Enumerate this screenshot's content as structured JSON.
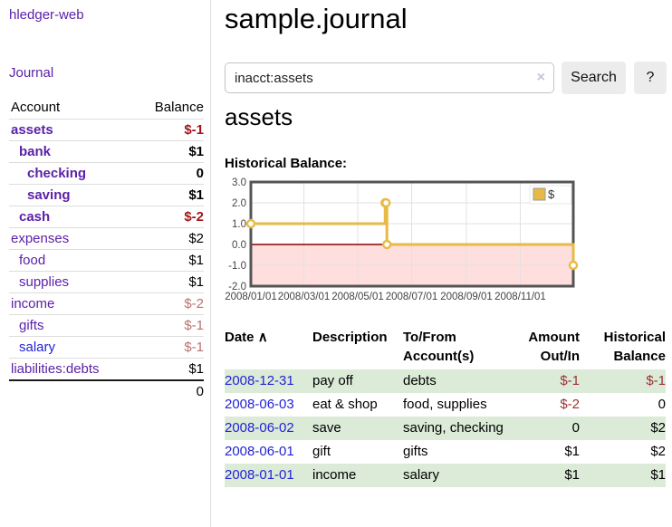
{
  "app": {
    "title": "hledger-web"
  },
  "colors": {
    "link_purple": "#5b21a8",
    "link_blue": "#2323d6",
    "negative_strong": "#a31515",
    "negative_soft": "#bb7070",
    "table_negative": "#9a3334",
    "row_stripe_green": "#dcead8",
    "chart_gold": "#e8ba45",
    "chart_zero_line": "#8b0000",
    "chart_negative_fill": "rgba(255,0,0,0.13)"
  },
  "sidebar": {
    "nav_journal": "Journal",
    "accounts_table": {
      "headers": [
        "Account",
        "Balance"
      ],
      "rows": [
        {
          "account": "assets",
          "depth": 0,
          "bold": true,
          "balance": "$-1"
        },
        {
          "account": "bank",
          "depth": 1,
          "bold": true,
          "balance": "$1"
        },
        {
          "account": "checking",
          "depth": 2,
          "bold": true,
          "balance": "0"
        },
        {
          "account": "saving",
          "depth": 2,
          "bold": true,
          "balance": "$1"
        },
        {
          "account": "cash",
          "depth": 1,
          "bold": true,
          "balance": "$-2"
        },
        {
          "account": "expenses",
          "depth": 0,
          "bold": false,
          "balance": "$2"
        },
        {
          "account": "food",
          "depth": 1,
          "bold": false,
          "balance": "$1"
        },
        {
          "account": "supplies",
          "depth": 1,
          "bold": false,
          "balance": "$1"
        },
        {
          "account": "income",
          "depth": 0,
          "bold": false,
          "balance": "$-2"
        },
        {
          "account": "gifts",
          "depth": 1,
          "bold": false,
          "balance": "$-1"
        },
        {
          "account": "salary",
          "depth": 1,
          "bold": false,
          "blue": true,
          "balance": "$-1"
        },
        {
          "account": "liabilities:debts",
          "depth": 0,
          "bold": false,
          "balance": "$1"
        }
      ],
      "total": "0"
    }
  },
  "main": {
    "title": "sample.journal",
    "search": {
      "value": "inacct:assets",
      "clear_icon": "×",
      "button": "Search",
      "help_button": "?"
    },
    "account_heading": "assets",
    "chart_label": "Historical Balance:"
  },
  "chart_data": {
    "type": "line",
    "step": true,
    "title": "Historical Balance",
    "series": [
      {
        "name": "$",
        "points": [
          [
            "2008-01-01",
            1
          ],
          [
            "2008-06-01",
            2
          ],
          [
            "2008-06-02",
            2
          ],
          [
            "2008-06-03",
            0
          ],
          [
            "2008-12-31",
            -1
          ]
        ]
      }
    ],
    "x_range": [
      "2008-01-01",
      "2008-12-31"
    ],
    "x_ticks": [
      "2008/01/01",
      "2008/03/01",
      "2008/05/01",
      "2008/07/01",
      "2008/09/01",
      "2008/11/01"
    ],
    "y_ticks": [
      "3.0",
      "2.0",
      "1.0",
      "0.0",
      "-1.0",
      "-2.0"
    ],
    "ylim": [
      -2,
      3
    ],
    "grid": true,
    "legend": {
      "label": "$",
      "position": "top-right"
    }
  },
  "transactions": {
    "headers": {
      "date": "Date",
      "sort_icon": "∧",
      "description": "Description",
      "accounts_line1": "To/From",
      "accounts_line2": "Account(s)",
      "amount_line1": "Amount",
      "amount_line2": "Out/In",
      "balance_line1": "Historical",
      "balance_line2": "Balance"
    },
    "rows": [
      {
        "date": "2008-12-31",
        "description": "pay off",
        "accounts": "debts",
        "amount": "$-1",
        "balance": "$-1"
      },
      {
        "date": "2008-06-03",
        "description": "eat & shop",
        "accounts": "food, supplies",
        "amount": "$-2",
        "balance": "0"
      },
      {
        "date": "2008-06-02",
        "description": "save",
        "accounts": "saving, checking",
        "amount": "0",
        "balance": "$2"
      },
      {
        "date": "2008-06-01",
        "description": "gift",
        "accounts": "gifts",
        "amount": "$1",
        "balance": "$2"
      },
      {
        "date": "2008-01-01",
        "description": "income",
        "accounts": "salary",
        "amount": "$1",
        "balance": "$1"
      }
    ]
  }
}
